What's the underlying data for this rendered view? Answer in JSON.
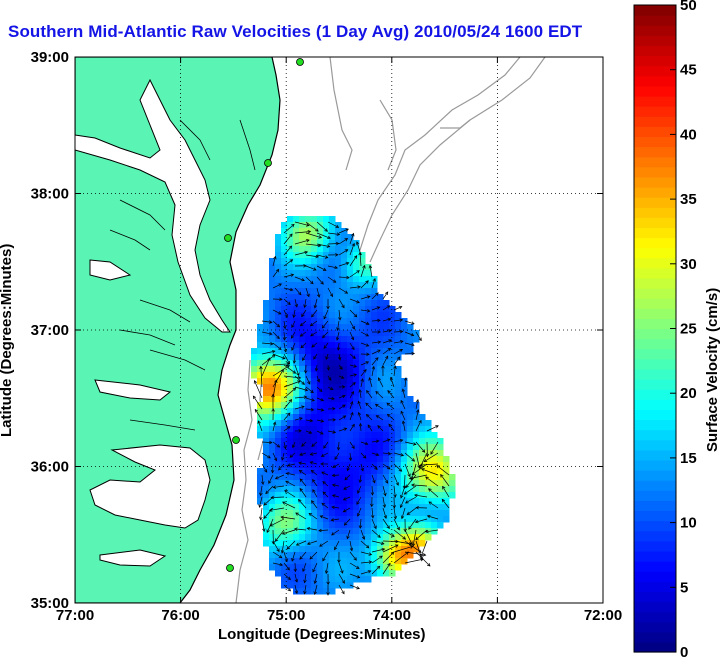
{
  "title": "Southern Mid-Atlantic Raw Velocities (1 Day Avg) 2010/05/24 1600 EDT",
  "xlabel": "Longitude (Degrees:Minutes)",
  "ylabel": "Latitude (Degrees:Minutes)",
  "colorbar": {
    "label": "Surface Velocity (cm/s)",
    "min": 0,
    "max": 50,
    "ticks": [
      "0",
      "5",
      "10",
      "15",
      "20",
      "25",
      "30",
      "35",
      "40",
      "45",
      "50"
    ]
  },
  "axes": {
    "x_ticks": [
      "77:00",
      "76:00",
      "75:00",
      "74:00",
      "73:00",
      "72:00"
    ],
    "y_ticks": [
      "39:00",
      "38:00",
      "37:00",
      "36:00",
      "35:00"
    ],
    "lon_range": [
      -77,
      -72
    ],
    "lat_range": [
      35,
      39
    ],
    "grid": true
  },
  "colors": {
    "land": "#5af5b4",
    "title": "#1414e6",
    "coastline": "#000000",
    "bathymetry": "#9a9a9a",
    "station": "#22dd22"
  }
}
